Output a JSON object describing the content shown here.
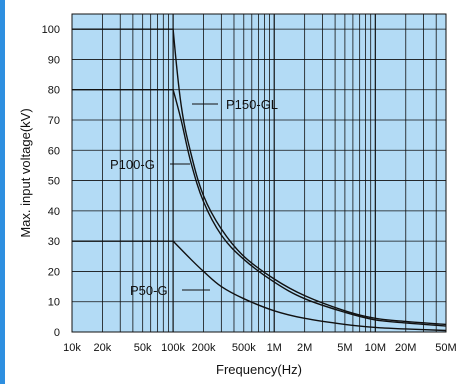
{
  "chart_data": {
    "type": "line",
    "title": "",
    "xlabel": "Frequency(Hz)",
    "ylabel": "Max. input voltage(kV)",
    "x_scale": "log",
    "xlim": [
      10000,
      50000000
    ],
    "ylim": [
      0,
      105
    ],
    "grid": true,
    "x_ticks": [
      {
        "value": 10000,
        "label": "10k"
      },
      {
        "value": 20000,
        "label": "20k"
      },
      {
        "value": 50000,
        "label": "50k"
      },
      {
        "value": 100000,
        "label": "100k"
      },
      {
        "value": 200000,
        "label": "200k"
      },
      {
        "value": 500000,
        "label": "500k"
      },
      {
        "value": 1000000,
        "label": "1M"
      },
      {
        "value": 2000000,
        "label": "2M"
      },
      {
        "value": 5000000,
        "label": "5M"
      },
      {
        "value": 10000000,
        "label": "10M"
      },
      {
        "value": 20000000,
        "label": "20M"
      },
      {
        "value": 50000000,
        "label": "50M"
      }
    ],
    "y_ticks": [
      0,
      10,
      20,
      30,
      40,
      50,
      60,
      70,
      80,
      90,
      100
    ],
    "series": [
      {
        "name": "P150-GL",
        "points": [
          [
            10000,
            100
          ],
          [
            100000,
            100
          ],
          [
            120000,
            75
          ],
          [
            150000,
            59
          ],
          [
            200000,
            45
          ],
          [
            300000,
            34
          ],
          [
            500000,
            25
          ],
          [
            1000000,
            17.5
          ],
          [
            2000000,
            12
          ],
          [
            5000000,
            7
          ],
          [
            10000000,
            4.5
          ],
          [
            20000000,
            3.5
          ],
          [
            50000000,
            2.5
          ]
        ]
      },
      {
        "name": "P100-G",
        "points": [
          [
            10000,
            80
          ],
          [
            100000,
            80
          ],
          [
            120000,
            70
          ],
          [
            150000,
            56
          ],
          [
            200000,
            43
          ],
          [
            300000,
            32
          ],
          [
            500000,
            24
          ],
          [
            1000000,
            16.5
          ],
          [
            2000000,
            11
          ],
          [
            5000000,
            6.5
          ],
          [
            10000000,
            4
          ],
          [
            20000000,
            3
          ],
          [
            50000000,
            2
          ]
        ]
      },
      {
        "name": "P50-G",
        "points": [
          [
            10000,
            30
          ],
          [
            100000,
            30
          ],
          [
            150000,
            24
          ],
          [
            200000,
            20
          ],
          [
            300000,
            15
          ],
          [
            500000,
            11
          ],
          [
            1000000,
            7
          ],
          [
            2000000,
            4.5
          ],
          [
            5000000,
            2.5
          ],
          [
            10000000,
            1.5
          ],
          [
            20000000,
            1
          ],
          [
            50000000,
            0.5
          ]
        ]
      }
    ],
    "colors": {
      "plot_background": "#b3dbf5",
      "lines": "#111111",
      "edge_bar": "#2e8fe0"
    }
  }
}
